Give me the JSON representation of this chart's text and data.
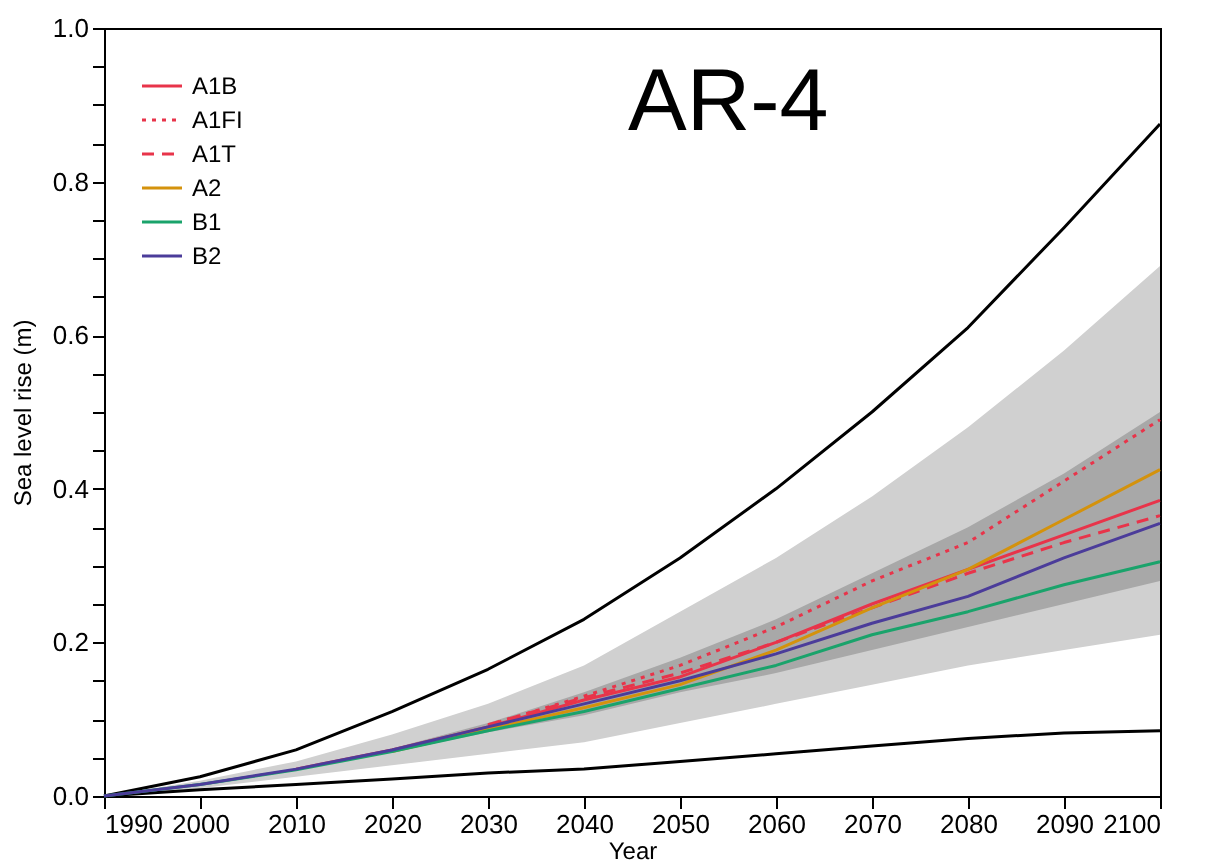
{
  "chart_data": {
    "type": "line",
    "xlabel": "Year",
    "ylabel": "Sea level rise (m)",
    "annotations": [
      "AR-4"
    ],
    "x": [
      1990,
      2000,
      2010,
      2020,
      2030,
      2040,
      2050,
      2060,
      2070,
      2080,
      2090,
      2100
    ],
    "xlim": [
      1990,
      2100
    ],
    "xticks": [
      1990,
      2000,
      2010,
      2020,
      2030,
      2040,
      2050,
      2060,
      2070,
      2080,
      2090,
      2100
    ],
    "ylim": [
      0,
      1
    ],
    "yticks": [
      {
        "value": 0,
        "label": "0.0"
      },
      {
        "value": 0.05,
        "label": null
      },
      {
        "value": 0.1,
        "label": null
      },
      {
        "value": 0.15,
        "label": null
      },
      {
        "value": 0.2,
        "label": "0.2"
      },
      {
        "value": 0.25,
        "label": null
      },
      {
        "value": 0.3,
        "label": null
      },
      {
        "value": 0.35,
        "label": null
      },
      {
        "value": 0.4,
        "label": "0.4"
      },
      {
        "value": 0.45,
        "label": null
      },
      {
        "value": 0.5,
        "label": null
      },
      {
        "value": 0.55,
        "label": null
      },
      {
        "value": 0.6,
        "label": "0.6"
      },
      {
        "value": 0.65,
        "label": null
      },
      {
        "value": 0.7,
        "label": null
      },
      {
        "value": 0.75,
        "label": null
      },
      {
        "value": 0.8,
        "label": "0.8"
      },
      {
        "value": 0.85,
        "label": null
      },
      {
        "value": 0.9,
        "label": null
      },
      {
        "value": 0.95,
        "label": null
      },
      {
        "value": 1,
        "label": "1.0"
      }
    ],
    "grid": false,
    "legend": "top left",
    "series": [
      {
        "type": "line",
        "color": "#d0d0d0",
        "values": [
          null,
          null,
          null,
          null,
          null,
          null,
          null,
          null,
          null,
          null,
          null,
          null
        ],
        "lower": [
          0,
          0.01,
          0.025,
          0.04,
          0.055,
          0.07,
          0.095,
          0.12,
          0.145,
          0.17,
          0.19,
          0.21
        ],
        "upper": [
          0,
          0.02,
          0.045,
          0.08,
          0.12,
          0.17,
          0.24,
          0.31,
          0.39,
          0.48,
          0.58,
          0.69
        ]
      },
      {
        "type": "line",
        "color": "#a8a8a8",
        "values": [
          null,
          null,
          null,
          null,
          null,
          null,
          null,
          null,
          null,
          null,
          null,
          null
        ],
        "lower": [
          0,
          0.015,
          0.034,
          0.057,
          0.083,
          0.105,
          0.135,
          0.16,
          0.19,
          0.22,
          0.25,
          0.28
        ],
        "upper": [
          0,
          0.015,
          0.035,
          0.062,
          0.095,
          0.135,
          0.18,
          0.23,
          0.29,
          0.35,
          0.42,
          0.5
        ]
      },
      {
        "type": "line",
        "color": "#000000",
        "line_style": "solid",
        "values": [
          0,
          0.025,
          0.06,
          0.11,
          0.165,
          0.23,
          0.31,
          0.4,
          0.5,
          0.61,
          0.74,
          0.875
        ]
      },
      {
        "type": "line",
        "color": "#000000",
        "line_style": "solid",
        "values": [
          0,
          0.008,
          0.015,
          0.022,
          0.03,
          0.035,
          0.045,
          0.055,
          0.065,
          0.075,
          0.082,
          0.085
        ]
      },
      {
        "name": "A1B",
        "color": "#e8344a",
        "line_style": "solid",
        "values": [
          null,
          null,
          0.035,
          0.06,
          0.09,
          0.125,
          0.155,
          0.2,
          0.25,
          0.295,
          0.34,
          0.385
        ]
      },
      {
        "name": "A1FI",
        "color": "#e8344a",
        "line_style": "dotted",
        "values": [
          null,
          null,
          null,
          null,
          0.092,
          0.13,
          0.17,
          0.22,
          0.28,
          0.33,
          0.41,
          0.49
        ]
      },
      {
        "name": "A1T",
        "color": "#e8344a",
        "line_style": "dashed",
        "values": [
          null,
          null,
          null,
          null,
          0.093,
          0.128,
          0.16,
          0.2,
          0.245,
          0.29,
          0.33,
          0.365
        ]
      },
      {
        "name": "A2",
        "color": "#d4920c",
        "line_style": "solid",
        "values": [
          null,
          null,
          null,
          0.058,
          0.087,
          0.115,
          0.145,
          0.19,
          0.245,
          0.295,
          0.36,
          0.425
        ]
      },
      {
        "name": "B1",
        "color": "#1aa36b",
        "line_style": "solid",
        "values": [
          0,
          0.015,
          0.034,
          0.058,
          0.085,
          0.11,
          0.14,
          0.17,
          0.21,
          0.24,
          0.275,
          0.305
        ]
      },
      {
        "name": "B2",
        "color": "#4b3c9a",
        "line_style": "solid",
        "values": [
          0,
          0.015,
          0.035,
          0.06,
          0.09,
          0.12,
          0.15,
          0.185,
          0.225,
          0.26,
          0.31,
          0.355
        ]
      }
    ]
  }
}
